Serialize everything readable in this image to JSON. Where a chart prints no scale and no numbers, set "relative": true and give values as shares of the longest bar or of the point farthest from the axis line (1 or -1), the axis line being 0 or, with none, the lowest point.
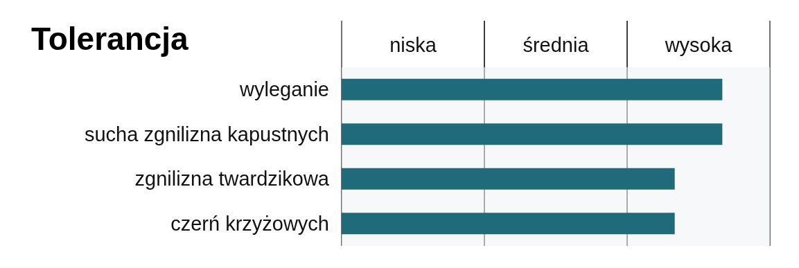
{
  "chart_data": {
    "type": "bar",
    "orientation": "horizontal",
    "relative": true,
    "title": "Tolerancja",
    "categories": [
      "wyleganie",
      "sucha zgnilizna kapustnych",
      "zgnilizna twardzikowa",
      "czerń krzyżowych"
    ],
    "values": [
      1,
      1,
      0.875,
      0.875
    ],
    "color": "#1f6b7c",
    "bands": [
      {
        "axis": "x",
        "from": 0,
        "to": 0.375,
        "label": "niska"
      },
      {
        "axis": "x",
        "from": 0.375,
        "to": 0.75,
        "label": "średnia"
      },
      {
        "axis": "x",
        "from": 0.75,
        "to": 1.125,
        "label": "wysoka"
      }
    ],
    "tick_labels": "y"
  }
}
